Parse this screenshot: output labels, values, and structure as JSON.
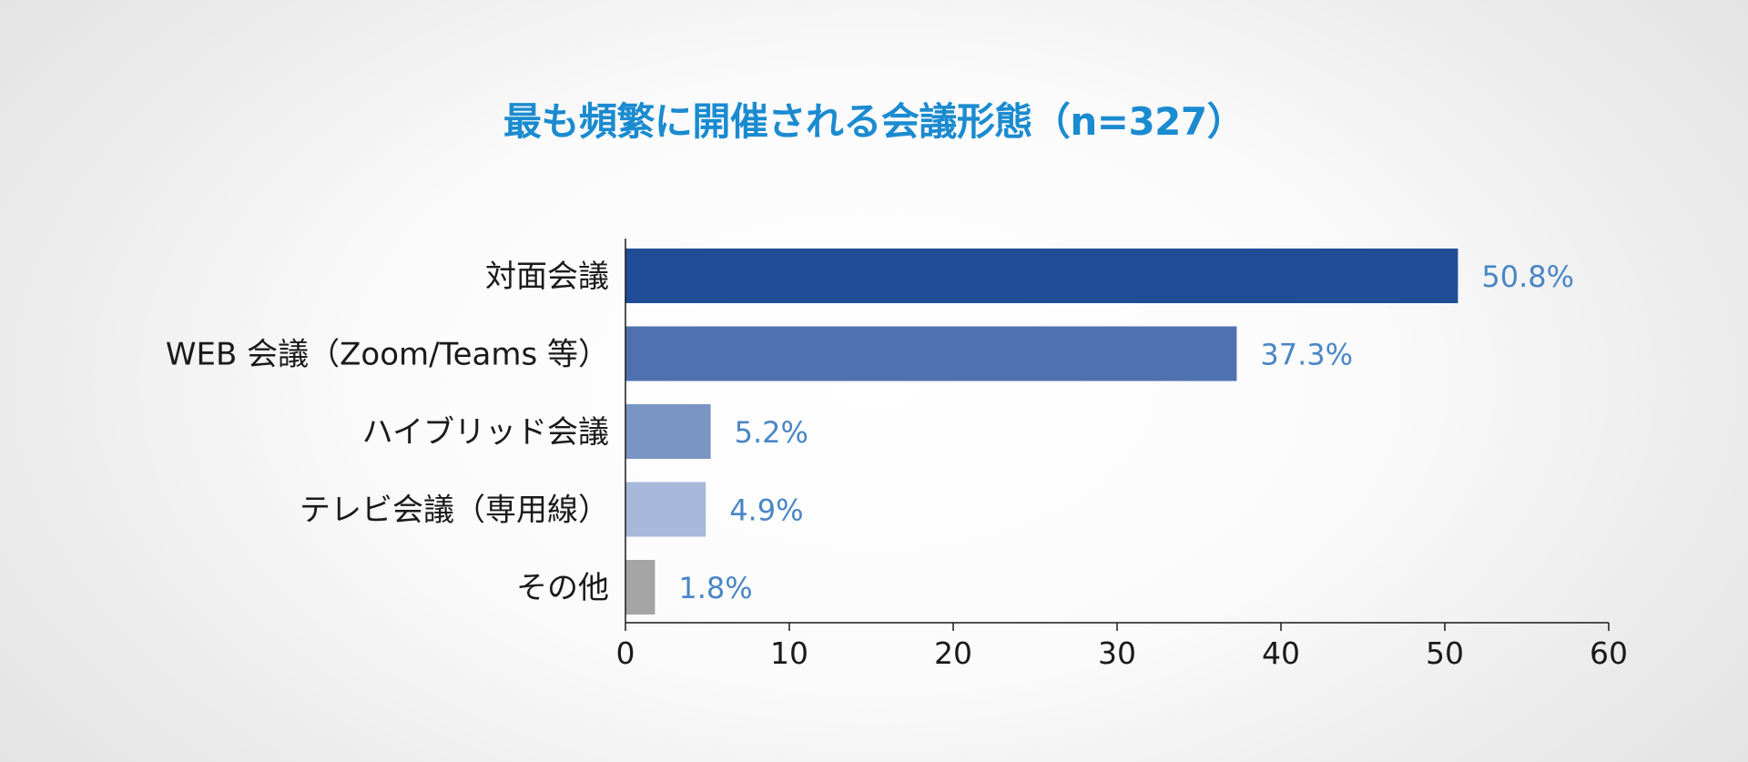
{
  "chart_data": {
    "type": "bar",
    "orientation": "horizontal",
    "title": "最も頻繁に開催される会議形態（n=327）",
    "categories": [
      "対面会議",
      "WEB 会議（Zoom/Teams 等）",
      "ハイブリッド会議",
      "テレビ会議（専用線）",
      "その他"
    ],
    "values": [
      50.8,
      37.3,
      5.2,
      4.9,
      1.8
    ],
    "data_labels": [
      "50.8%",
      "37.3%",
      "5.2%",
      "4.9%",
      "1.8%"
    ],
    "bar_colors": [
      "#214d98",
      "#4f71b0",
      "#7a94c4",
      "#a8b8da",
      "#a5a5a5"
    ],
    "xlim": [
      0,
      60
    ],
    "xticks": [
      "0",
      "10",
      "20",
      "30",
      "40",
      "50",
      "60"
    ],
    "xlabel": "",
    "ylabel": "",
    "grid": false,
    "legend": "none"
  },
  "colors": {
    "title": "#1b8bd0",
    "data_label": "#4a86c5",
    "axis": "#1a1a1a"
  }
}
